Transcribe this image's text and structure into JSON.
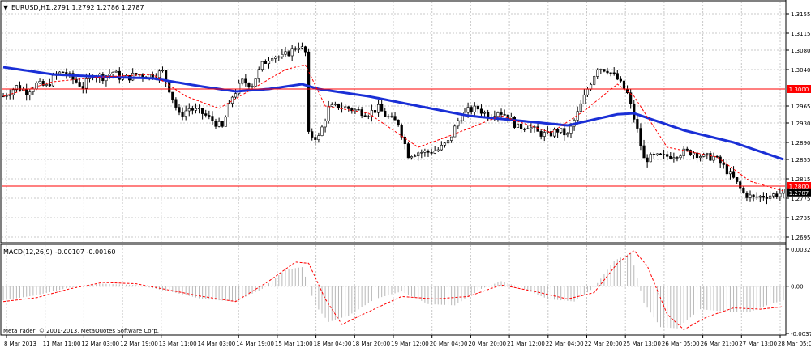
{
  "header": {
    "symbol_title": "EURUSD,H1",
    "ohlc": "1.2791 1.2792 1.2786 1.2787"
  },
  "macd_header": {
    "label": "MACD(12,26,9)",
    "values": "-0.00107 -0.00160"
  },
  "footer": {
    "copyright": "MetaTrader, © 2001-2013, MetaQuotes Software Corp."
  },
  "colors": {
    "background": "#ffffff",
    "grid": "#c8c8c8",
    "candles": "#000000",
    "ma_slow": "#1a2fd6",
    "ma_fast": "#ff0000",
    "level_line": "#ff0000",
    "level_badge": "#ff0000",
    "price_badge": "#000000",
    "histogram": "#b8b8b8",
    "signal": "#ff0000"
  },
  "chart_data": [
    {
      "type": "candlestick",
      "name": "price",
      "y_ticks": [
        "1.3155",
        "1.3115",
        "1.3080",
        "1.3040",
        "1.2965",
        "1.2930",
        "1.2890",
        "1.2855",
        "1.2815",
        "1.2775",
        "1.2735",
        "1.2695"
      ],
      "ylim": [
        1.2685,
        1.318
      ],
      "x_ticks": [
        "8 Mar 2013",
        "11 Mar 11:00",
        "12 Mar 03:00",
        "12 Mar 19:00",
        "13 Mar 11:00",
        "14 Mar 03:00",
        "14 Mar 19:00",
        "15 Mar 11:00",
        "18 Mar 04:00",
        "18 Mar 20:00",
        "19 Mar 12:00",
        "20 Mar 04:00",
        "20 Mar 20:00",
        "21 Mar 12:00",
        "22 Mar 04:00",
        "22 Mar 20:00",
        "25 Mar 13:00",
        "26 Mar 05:00",
        "26 Mar 21:00",
        "27 Mar 13:00",
        "28 Mar 05:00"
      ],
      "horizontal_levels": [
        {
          "value": 1.3,
          "label": "1.3000"
        },
        {
          "value": 1.28,
          "label": "1.2800"
        }
      ],
      "current_price": {
        "value": 1.2787,
        "label": "1.2787"
      },
      "close_path": [
        [
          0,
          1.2985
        ],
        [
          4,
          1.3005
        ],
        [
          7,
          1.2995
        ],
        [
          10,
          1.301
        ],
        [
          13,
          1.3005
        ],
        [
          16,
          1.303
        ],
        [
          18,
          1.3035
        ],
        [
          21,
          1.302
        ],
        [
          24,
          1.3005
        ],
        [
          27,
          1.303
        ],
        [
          30,
          1.3025
        ],
        [
          33,
          1.3035
        ],
        [
          36,
          1.302
        ],
        [
          40,
          1.303
        ],
        [
          44,
          1.3028
        ],
        [
          48,
          1.3035
        ],
        [
          50,
          1.3
        ],
        [
          53,
          1.2945
        ],
        [
          56,
          1.296
        ],
        [
          60,
          1.295
        ],
        [
          63,
          1.2935
        ],
        [
          66,
          1.292
        ],
        [
          69,
          1.2985
        ],
        [
          72,
          1.3015
        ],
        [
          75,
          1.301
        ],
        [
          78,
          1.305
        ],
        [
          81,
          1.307
        ],
        [
          84,
          1.3065
        ],
        [
          86,
          1.3075
        ],
        [
          89,
          1.309
        ],
        [
          91,
          1.3075
        ],
        [
          92,
          1.2905
        ],
        [
          95,
          1.29
        ],
        [
          98,
          1.296
        ],
        [
          101,
          1.2965
        ],
        [
          104,
          1.296
        ],
        [
          107,
          1.2955
        ],
        [
          110,
          1.295
        ],
        [
          113,
          1.296
        ],
        [
          116,
          1.294
        ],
        [
          119,
          1.293
        ],
        [
          122,
          1.2865
        ],
        [
          125,
          1.287
        ],
        [
          128,
          1.287
        ],
        [
          131,
          1.2875
        ],
        [
          134,
          1.289
        ],
        [
          137,
          1.2935
        ],
        [
          140,
          1.2955
        ],
        [
          143,
          1.296
        ],
        [
          146,
          1.2945
        ],
        [
          149,
          1.2955
        ],
        [
          152,
          1.2945
        ],
        [
          155,
          1.292
        ],
        [
          158,
          1.2925
        ],
        [
          161,
          1.291
        ],
        [
          164,
          1.2905
        ],
        [
          167,
          1.2915
        ],
        [
          170,
          1.2905
        ],
        [
          173,
          1.295
        ],
        [
          176,
          1.3
        ],
        [
          179,
          1.3045
        ],
        [
          182,
          1.304
        ],
        [
          185,
          1.302
        ],
        [
          188,
          1.299
        ],
        [
          191,
          1.2915
        ],
        [
          193,
          1.2855
        ],
        [
          196,
          1.286
        ],
        [
          199,
          1.286
        ],
        [
          202,
          1.2865
        ],
        [
          205,
          1.287
        ],
        [
          208,
          1.287
        ],
        [
          211,
          1.286
        ],
        [
          214,
          1.286
        ],
        [
          217,
          1.284
        ],
        [
          220,
          1.2815
        ],
        [
          223,
          1.2785
        ],
        [
          226,
          1.2775
        ],
        [
          229,
          1.278
        ],
        [
          232,
          1.2782
        ],
        [
          235,
          1.2787
        ]
      ],
      "ma_slow_path": [
        [
          0,
          1.3045
        ],
        [
          15,
          1.303
        ],
        [
          30,
          1.3025
        ],
        [
          45,
          1.3022
        ],
        [
          60,
          1.3005
        ],
        [
          70,
          1.2995
        ],
        [
          80,
          1.3
        ],
        [
          90,
          1.301
        ],
        [
          95,
          1.3
        ],
        [
          110,
          1.2985
        ],
        [
          125,
          1.2965
        ],
        [
          140,
          1.2945
        ],
        [
          155,
          1.2935
        ],
        [
          170,
          1.2925
        ],
        [
          185,
          1.2948
        ],
        [
          190,
          1.295
        ],
        [
          205,
          1.2915
        ],
        [
          220,
          1.289
        ],
        [
          235,
          1.2855
        ]
      ],
      "ma_fast_path": [
        [
          0,
          1.2985
        ],
        [
          15,
          1.3015
        ],
        [
          30,
          1.3025
        ],
        [
          45,
          1.303
        ],
        [
          55,
          1.2985
        ],
        [
          65,
          1.296
        ],
        [
          75,
          1.3
        ],
        [
          85,
          1.304
        ],
        [
          91,
          1.305
        ],
        [
          97,
          1.2965
        ],
        [
          110,
          1.295
        ],
        [
          125,
          1.288
        ],
        [
          135,
          1.2905
        ],
        [
          150,
          1.2945
        ],
        [
          165,
          1.291
        ],
        [
          175,
          1.2955
        ],
        [
          185,
          1.301
        ],
        [
          190,
          1.2985
        ],
        [
          200,
          1.288
        ],
        [
          215,
          1.286
        ],
        [
          225,
          1.281
        ],
        [
          235,
          1.279
        ]
      ]
    },
    {
      "type": "bar",
      "name": "macd",
      "y_ticks": [
        "0.00322",
        "0.00",
        "-0.00376"
      ],
      "ylim": [
        -0.00376,
        0.00322
      ],
      "histogram_path": [
        [
          0,
          -0.0011
        ],
        [
          10,
          -0.0007
        ],
        [
          20,
          -0.0001
        ],
        [
          30,
          0.0002
        ],
        [
          40,
          0.0001
        ],
        [
          50,
          -0.0004
        ],
        [
          60,
          -0.001
        ],
        [
          70,
          -0.0012
        ],
        [
          78,
          -0.0002
        ],
        [
          85,
          0.0013
        ],
        [
          90,
          0.0015
        ],
        [
          94,
          -0.0015
        ],
        [
          98,
          -0.0028
        ],
        [
          104,
          -0.0023
        ],
        [
          112,
          -0.001
        ],
        [
          120,
          -0.0004
        ],
        [
          128,
          -0.0014
        ],
        [
          136,
          -0.0015
        ],
        [
          144,
          -0.0002
        ],
        [
          150,
          0.0004
        ],
        [
          156,
          -0.0001
        ],
        [
          164,
          -0.001
        ],
        [
          172,
          -0.0012
        ],
        [
          178,
          -0.0001
        ],
        [
          184,
          0.002
        ],
        [
          189,
          0.0026
        ],
        [
          193,
          -0.0013
        ],
        [
          198,
          -0.0032
        ],
        [
          203,
          -0.0033
        ],
        [
          210,
          -0.0018
        ],
        [
          218,
          -0.002
        ],
        [
          225,
          -0.002
        ],
        [
          230,
          -0.0015
        ],
        [
          235,
          -0.0011
        ]
      ],
      "signal_path": [
        [
          0,
          -0.0012
        ],
        [
          10,
          -0.0009
        ],
        [
          20,
          -0.0002
        ],
        [
          30,
          0.0003
        ],
        [
          40,
          0.0002
        ],
        [
          50,
          -0.0003
        ],
        [
          60,
          -0.0008
        ],
        [
          70,
          -0.0012
        ],
        [
          80,
          0.0004
        ],
        [
          88,
          0.0019
        ],
        [
          92,
          0.0018
        ],
        [
          97,
          -0.001
        ],
        [
          102,
          -0.003
        ],
        [
          110,
          -0.002
        ],
        [
          120,
          -0.0008
        ],
        [
          130,
          -0.001
        ],
        [
          140,
          -0.0008
        ],
        [
          150,
          0.0001
        ],
        [
          160,
          -0.0004
        ],
        [
          170,
          -0.001
        ],
        [
          178,
          -0.0005
        ],
        [
          185,
          0.0018
        ],
        [
          190,
          0.0028
        ],
        [
          194,
          0.0016
        ],
        [
          200,
          -0.0022
        ],
        [
          205,
          -0.0034
        ],
        [
          212,
          -0.0024
        ],
        [
          220,
          -0.0017
        ],
        [
          228,
          -0.0018
        ],
        [
          235,
          -0.0016
        ]
      ]
    }
  ]
}
